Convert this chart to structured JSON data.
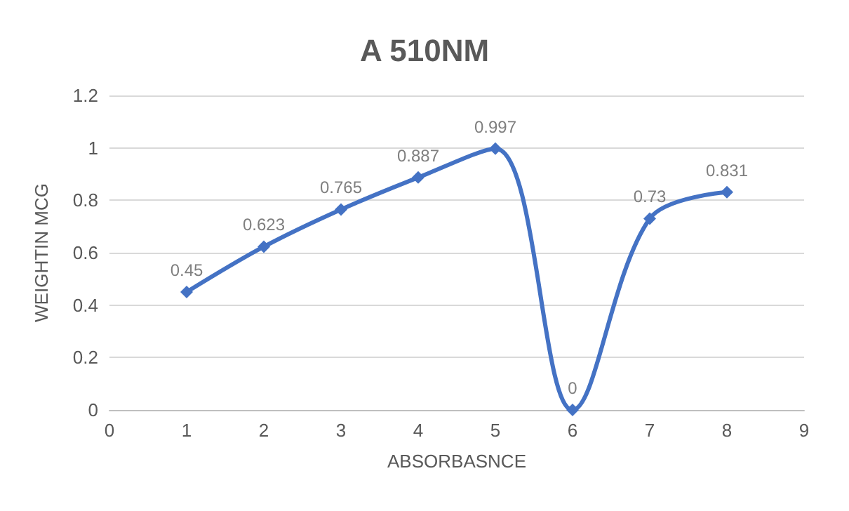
{
  "chart_data": {
    "type": "line",
    "title": "A 510NM",
    "xlabel": "ABSORBASNCE",
    "ylabel": "WEIGHTIN MCG",
    "x": [
      1,
      2,
      3,
      4,
      5,
      6,
      7,
      8
    ],
    "series": [
      {
        "color": "#4472c4",
        "values": [
          0.45,
          0.623,
          0.765,
          0.887,
          0.997,
          0,
          0.73,
          0.831
        ]
      }
    ],
    "xlim": [
      0,
      9
    ],
    "xticks": [
      0,
      1,
      2,
      3,
      4,
      5,
      6,
      7,
      8,
      9
    ],
    "ylim": [
      0,
      1.2
    ],
    "yticks": [
      0,
      0.2,
      0.4,
      0.6,
      0.8,
      1,
      1.2
    ],
    "grid": "y",
    "marker": "diamond",
    "line_style": "solid",
    "data_labels": true
  }
}
